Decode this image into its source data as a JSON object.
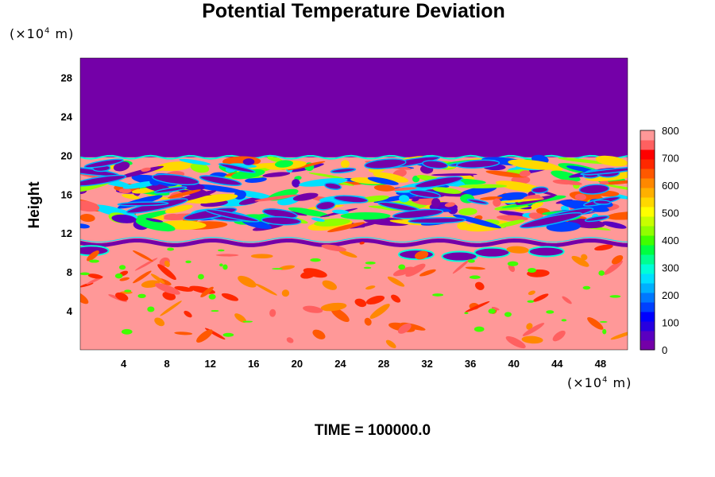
{
  "chart_data": {
    "type": "heatmap",
    "title": "Potential Temperature Deviation",
    "ylabel": "Height",
    "xlabel": "",
    "x_unit": {
      "prefix": "(×10",
      "exp": "4",
      "suffix": " m)"
    },
    "y_unit": {
      "prefix": "(×10",
      "exp": "4",
      "suffix": " m)"
    },
    "footer": "TIME = 100000.0",
    "xlim": [
      0,
      50.5
    ],
    "ylim": [
      0,
      30
    ],
    "x_ticks": [
      4,
      8,
      12,
      16,
      20,
      24,
      28,
      32,
      36,
      40,
      44,
      48
    ],
    "y_ticks": [
      4,
      8,
      12,
      16,
      20,
      24,
      28
    ],
    "colorbar": {
      "min": 0,
      "max": 800,
      "ticks": [
        0,
        100,
        200,
        300,
        400,
        500,
        600,
        700,
        800
      ],
      "colors": [
        "#7400a8",
        "#5a00c0",
        "#2800e0",
        "#0000ff",
        "#0040ff",
        "#0078ff",
        "#00b0ff",
        "#00e0ff",
        "#00ffd8",
        "#00ff90",
        "#00ff40",
        "#40ff00",
        "#90ff00",
        "#c8ff00",
        "#ffff00",
        "#ffd800",
        "#ffb000",
        "#ff8800",
        "#ff5800",
        "#ff2800",
        "#ff0000",
        "#ff6060",
        "#ff9898"
      ]
    },
    "regions": [
      {
        "name": "upper-layer",
        "y_range": [
          19.8,
          30
        ],
        "value": 0
      },
      {
        "name": "turbulent-band",
        "y_range": [
          12.5,
          19.8
        ],
        "value": "mixed 0-800"
      },
      {
        "name": "stable-band",
        "y_range": [
          0,
          12.5
        ],
        "value": "mostly 800, warm eddies 600-800"
      }
    ]
  }
}
